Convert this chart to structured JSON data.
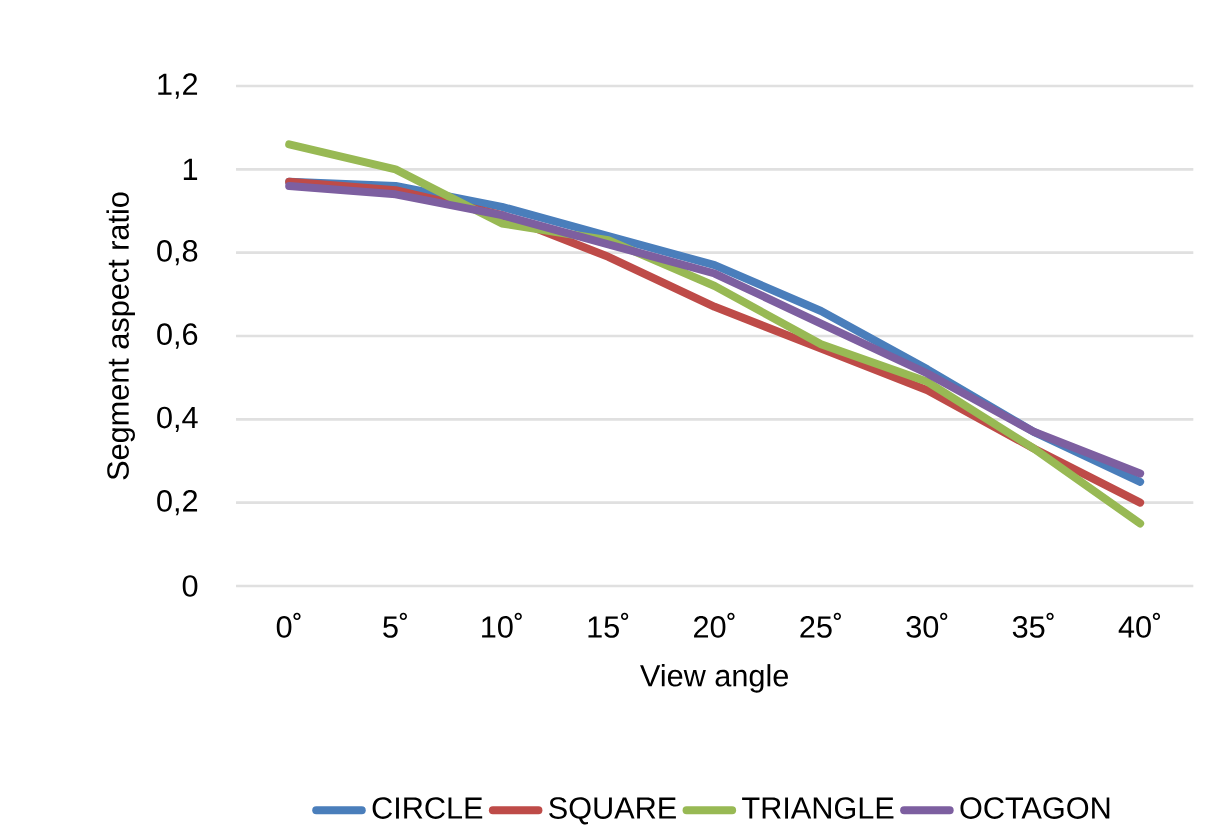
{
  "chart_data": {
    "type": "line",
    "xlabel": "View angle",
    "ylabel": "Segment aspect ratio",
    "categories": [
      "0˚",
      "5˚",
      "10˚",
      "15˚",
      "20˚",
      "25˚",
      "30˚",
      "35˚",
      "40˚"
    ],
    "series": [
      {
        "name": "CIRCLE",
        "color": "#4a7ebb",
        "values": [
          0.97,
          0.96,
          0.91,
          0.84,
          0.77,
          0.66,
          0.52,
          0.37,
          0.25
        ]
      },
      {
        "name": "SQUARE",
        "color": "#be4b48",
        "values": [
          0.97,
          0.95,
          0.89,
          0.79,
          0.67,
          0.57,
          0.47,
          0.33,
          0.2
        ]
      },
      {
        "name": "TRIANGLE",
        "color": "#98b954",
        "values": [
          1.06,
          1.0,
          0.87,
          0.83,
          0.72,
          0.58,
          0.49,
          0.33,
          0.15
        ]
      },
      {
        "name": "OCTAGON",
        "color": "#7d5fa0",
        "values": [
          0.96,
          0.94,
          0.89,
          0.82,
          0.75,
          0.63,
          0.51,
          0.37,
          0.27
        ]
      }
    ],
    "ylim": [
      0,
      1.2
    ],
    "yticks": [
      0,
      {
        "value": 0.2,
        "label": "0,2"
      },
      {
        "value": 0.4,
        "label": "0,4"
      },
      {
        "value": 0.6,
        "label": "0,6"
      },
      {
        "value": 0.8,
        "label": "0,8"
      },
      1,
      {
        "value": 1.2,
        "label": "1,2"
      }
    ],
    "grid": "y",
    "legend": "bottom",
    "marker": "none",
    "line_style": "solid"
  }
}
